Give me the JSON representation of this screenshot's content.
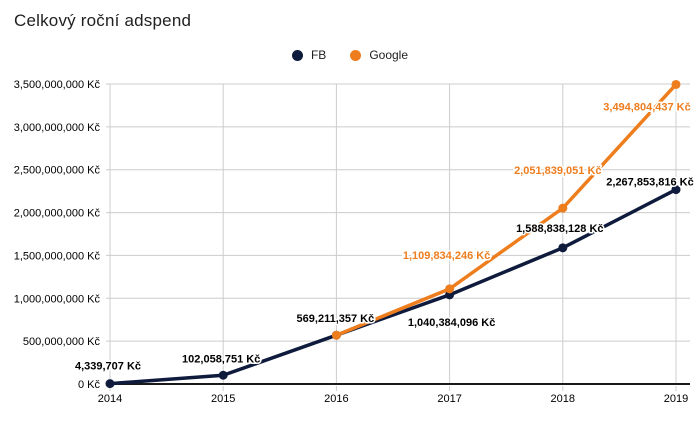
{
  "chart_data": {
    "type": "line",
    "title": "Celkový roční adspend",
    "currency": "Kč",
    "x_labels": [
      "2014",
      "2015",
      "2016",
      "2017",
      "2018",
      "2019"
    ],
    "y_ticks": [
      "0 Kč",
      "500,000,000 Kč",
      "1,000,000,000 Kč",
      "1,500,000,000 Kč",
      "2,000,000,000 Kč",
      "2,500,000,000 Kč",
      "3,000,000,000 Kč",
      "3,500,000,000 Kč"
    ],
    "ylim": [
      0,
      3500000000
    ],
    "y_step": 500000000,
    "grid": true,
    "legend_position": "top",
    "colors": {
      "grid": "#cccccc",
      "baseline": "#1a1a1a",
      "axis_text": "#000000",
      "fb_annotation_text": "#000000"
    },
    "series": [
      {
        "name": "FB",
        "color": "#0f1b3d",
        "values": [
          4339707,
          102058751,
          569211357,
          1040384096,
          1588838128,
          2267853816
        ],
        "annotations": [
          "4,339,707 Kč",
          "102,058,751 Kč",
          "569,211,357 Kč",
          "1,040,384,096 Kč",
          "1,588,838,128 Kč",
          "2,267,853,816 Kč"
        ]
      },
      {
        "name": "Google",
        "color": "#ee7d1e",
        "values": [
          null,
          null,
          569211357,
          1109834246,
          2051839051,
          3494804437
        ],
        "annotations": [
          null,
          null,
          null,
          "1,109,834,246 Kč",
          "2,051,839,051 Kč",
          "3,494,804,437 Kč"
        ]
      }
    ]
  }
}
